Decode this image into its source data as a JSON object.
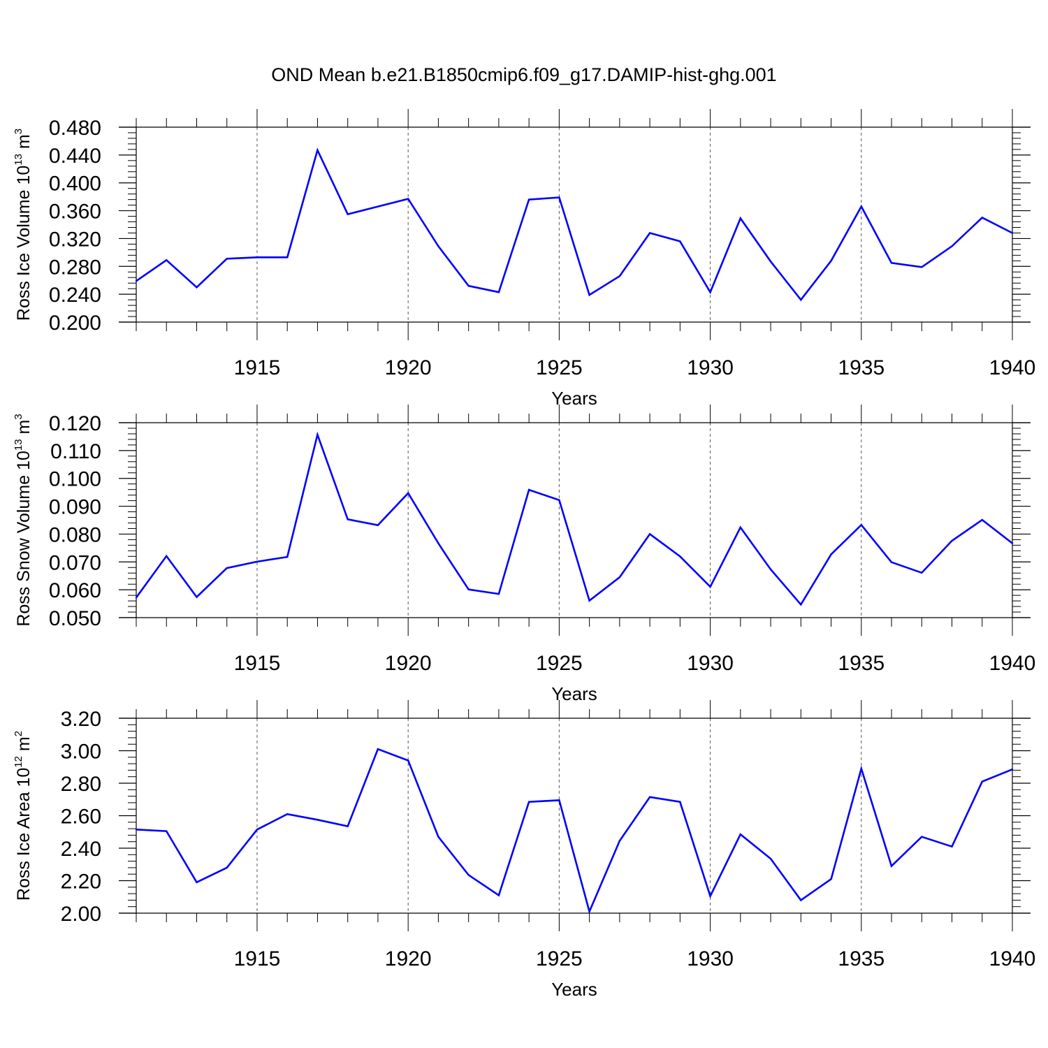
{
  "title": "OND Mean b.e21.B1850cmip6.f09_g17.DAMIP-hist-ghg.001",
  "colors": {
    "line": "#0000ff",
    "axis": "#000000",
    "grid": "#555555"
  },
  "chart_data": [
    {
      "type": "line",
      "ylabel": {
        "text": "Ross Ice Volume 10",
        "sup": "13",
        "mid": " m",
        "sup2": "3"
      },
      "xlabel": "Years",
      "x": [
        1911,
        1912,
        1913,
        1914,
        1915,
        1916,
        1917,
        1918,
        1919,
        1920,
        1921,
        1922,
        1923,
        1924,
        1925,
        1926,
        1927,
        1928,
        1929,
        1930,
        1931,
        1932,
        1933,
        1934,
        1935,
        1936,
        1937,
        1938,
        1939,
        1940
      ],
      "values": [
        0.259,
        0.289,
        0.25,
        0.291,
        0.293,
        0.293,
        0.447,
        0.355,
        0.366,
        0.377,
        0.309,
        0.252,
        0.243,
        0.376,
        0.379,
        0.239,
        0.266,
        0.328,
        0.316,
        0.243,
        0.349,
        0.287,
        0.232,
        0.288,
        0.366,
        0.285,
        0.279,
        0.309,
        0.35,
        0.328
      ],
      "xlim": [
        1911,
        1940
      ],
      "ylim": [
        0.2,
        0.48
      ],
      "yticks": [
        "0.200",
        "0.240",
        "0.280",
        "0.320",
        "0.360",
        "0.400",
        "0.440",
        "0.480"
      ],
      "xticks": [
        "1915",
        "1920",
        "1925",
        "1930",
        "1935",
        "1940"
      ]
    },
    {
      "type": "line",
      "ylabel": {
        "text": "Ross Snow Volume 10",
        "sup": "13",
        "mid": " m",
        "sup2": "3"
      },
      "xlabel": "Years",
      "x": [
        1911,
        1912,
        1913,
        1914,
        1915,
        1916,
        1917,
        1918,
        1919,
        1920,
        1921,
        1922,
        1923,
        1924,
        1925,
        1926,
        1927,
        1928,
        1929,
        1930,
        1931,
        1932,
        1933,
        1934,
        1935,
        1936,
        1937,
        1938,
        1939,
        1940
      ],
      "values": [
        0.0572,
        0.0721,
        0.0574,
        0.0678,
        0.0701,
        0.0718,
        0.1157,
        0.0853,
        0.0832,
        0.0947,
        0.0767,
        0.0601,
        0.0585,
        0.0959,
        0.0922,
        0.0561,
        0.0645,
        0.08,
        0.072,
        0.0611,
        0.0824,
        0.0673,
        0.0547,
        0.0727,
        0.0833,
        0.0699,
        0.0661,
        0.0776,
        0.0851,
        0.0767
      ],
      "xlim": [
        1911,
        1940
      ],
      "ylim": [
        0.05,
        0.12
      ],
      "yticks": [
        "0.050",
        "0.060",
        "0.070",
        "0.080",
        "0.090",
        "0.100",
        "0.110",
        "0.120"
      ],
      "xticks": [
        "1915",
        "1920",
        "1925",
        "1930",
        "1935",
        "1940"
      ]
    },
    {
      "type": "line",
      "ylabel": {
        "text": "Ross Ice Area 10",
        "sup": "12",
        "mid": " m",
        "sup2": "2"
      },
      "xlabel": "Years",
      "x": [
        1911,
        1912,
        1913,
        1914,
        1915,
        1916,
        1917,
        1918,
        1919,
        1920,
        1921,
        1922,
        1923,
        1924,
        1925,
        1926,
        1927,
        1928,
        1929,
        1930,
        1931,
        1932,
        1933,
        1934,
        1935,
        1936,
        1937,
        1938,
        1939,
        1940
      ],
      "values": [
        2.515,
        2.505,
        2.19,
        2.28,
        2.515,
        2.61,
        2.575,
        2.535,
        3.01,
        2.94,
        2.47,
        2.235,
        2.11,
        2.685,
        2.695,
        2.01,
        2.445,
        2.715,
        2.685,
        2.105,
        2.485,
        2.335,
        2.08,
        2.21,
        2.89,
        2.29,
        2.47,
        2.41,
        2.81,
        2.885
      ],
      "xlim": [
        1911,
        1940
      ],
      "ylim": [
        2.0,
        3.2
      ],
      "yticks": [
        "2.00",
        "2.20",
        "2.40",
        "2.60",
        "2.80",
        "3.00",
        "3.20"
      ],
      "xticks": [
        "1915",
        "1920",
        "1925",
        "1930",
        "1935",
        "1940"
      ]
    }
  ]
}
